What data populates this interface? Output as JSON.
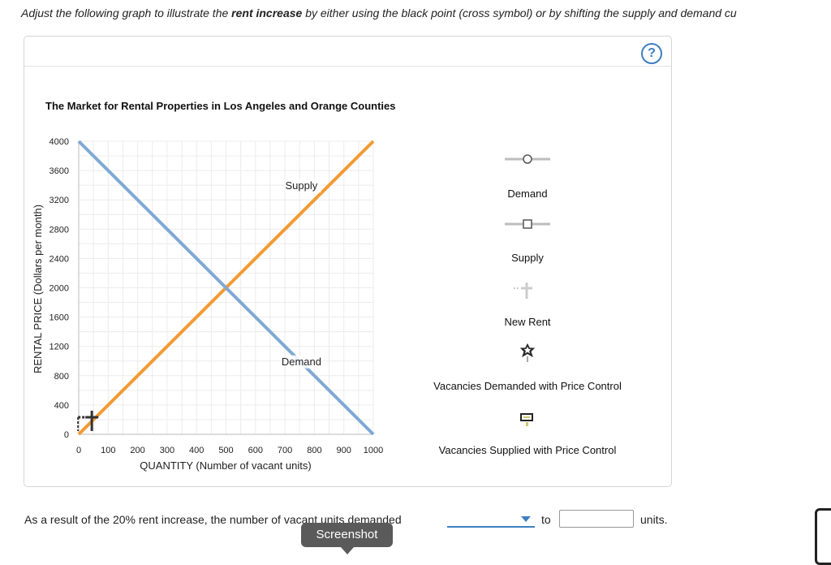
{
  "instruction": {
    "prefix": "Adjust the following graph to illustrate the ",
    "emphasis": "rent increase",
    "suffix": " by either using the black point (cross symbol) or by shifting the supply and demand cu"
  },
  "help_label": "?",
  "chart_data": {
    "type": "line",
    "title": "The Market for Rental Properties in Los Angeles and Orange Counties",
    "xlabel": "QUANTITY (Number of vacant units)",
    "ylabel": "RENTAL PRICE (Dollars per month)",
    "xlim": [
      0,
      1000
    ],
    "ylim": [
      0,
      4000
    ],
    "x_ticks": [
      0,
      100,
      200,
      300,
      400,
      500,
      600,
      700,
      800,
      900,
      1000
    ],
    "y_ticks": [
      0,
      400,
      800,
      1200,
      1600,
      2000,
      2400,
      2800,
      3200,
      3600,
      4000
    ],
    "grid": true,
    "series": [
      {
        "name": "Supply",
        "color": "#f39a33",
        "points": [
          [
            0,
            0
          ],
          [
            1000,
            4000
          ]
        ]
      },
      {
        "name": "Demand",
        "color": "#7fa9d3",
        "points": [
          [
            0,
            4000
          ],
          [
            1000,
            0
          ]
        ]
      }
    ],
    "annotations": [
      {
        "text": "Supply",
        "x": 800,
        "y": 3400
      },
      {
        "text": "Demand",
        "x": 800,
        "y": 1000
      }
    ],
    "marker": {
      "name": "black cross point",
      "x": 50,
      "y": 200
    }
  },
  "tools": [
    {
      "label": "Demand",
      "icon": "demand-line-tool-icon"
    },
    {
      "label": "Supply",
      "icon": "supply-line-tool-icon"
    },
    {
      "label": "New Rent",
      "icon": "new-rent-cross-icon"
    },
    {
      "label": "Vacancies Demanded with Price Control",
      "icon": "star-point-icon"
    },
    {
      "label": "Vacancies Supplied with Price Control",
      "icon": "rectangle-point-icon"
    }
  ],
  "question": {
    "text": "As a result of the 20% rent increase, the number of vacant units demanded",
    "dropdown_value": "",
    "to": "to",
    "input_value": "",
    "units": "units."
  },
  "tooltip": "Screenshot",
  "colors": {
    "accent": "#3d7fc1",
    "supply": "#f39a33",
    "demand": "#7fa9d3"
  }
}
